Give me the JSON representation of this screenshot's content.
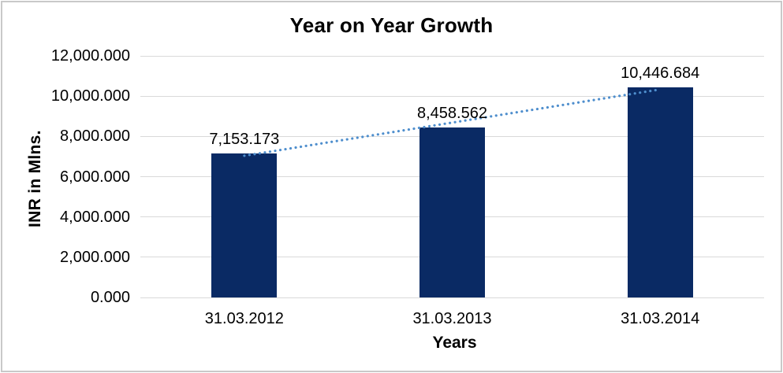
{
  "frame": {
    "border_color": "#C9C9C9",
    "background_color": "#FFFFFF"
  },
  "chart_data": {
    "type": "bar",
    "title": "Year on Year Growth",
    "xlabel": "Years",
    "ylabel": "INR in Mlns.",
    "categories": [
      "31.03.2012",
      "31.03.2013",
      "31.03.2014"
    ],
    "values": [
      7153.173,
      8458.562,
      10446.684
    ],
    "data_labels": [
      "7,153.173",
      "8,458.562",
      "10,446.684"
    ],
    "y_axis": {
      "min": 0,
      "max": 12000,
      "step": 2000,
      "tick_labels": [
        "0.000",
        "2,000.000",
        "4,000.000",
        "6,000.000",
        "8,000.000",
        "10,000.000",
        "12,000.000"
      ]
    },
    "grid": "horizontal",
    "legend": "none",
    "trendline": {
      "type": "linear",
      "style": "dotted"
    },
    "colors": {
      "bar": "#0A2A64",
      "trendline": "#4E8ECD",
      "gridline": "#D9D9D9",
      "text": "#000000"
    }
  }
}
